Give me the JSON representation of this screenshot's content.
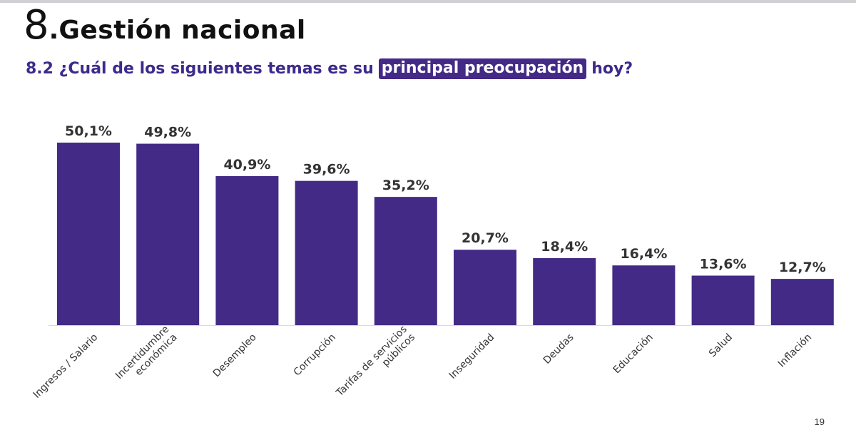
{
  "header": {
    "section_number": "8",
    "section_dot": ".",
    "section_title": "Gestión nacional"
  },
  "question": {
    "prefix": "8.2 ¿Cuál de los siguientes temas es su",
    "highlight": "principal preocupación",
    "suffix": "hoy?"
  },
  "page_number": "19",
  "colors": {
    "bar": "#432a86",
    "accent_text": "#3e2a8c",
    "label_text": "#333333",
    "baseline": "#d9d9de"
  },
  "chart_data": {
    "type": "bar",
    "categories": [
      [
        "Ingresos / Salario"
      ],
      [
        "Incertidumbre",
        "económica"
      ],
      [
        "Desempleo"
      ],
      [
        "Corrupción"
      ],
      [
        "Tarifas de servicios",
        "públicos"
      ],
      [
        "Inseguridad"
      ],
      [
        "Deudas"
      ],
      [
        "Educación"
      ],
      [
        "Salud"
      ],
      [
        "Inflación"
      ]
    ],
    "values": [
      50.1,
      49.8,
      40.9,
      39.6,
      35.2,
      20.7,
      18.4,
      16.4,
      13.6,
      12.7
    ],
    "value_labels": [
      "50,1%",
      "49,8%",
      "40,9%",
      "39,6%",
      "35,2%",
      "20,7%",
      "18,4%",
      "16,4%",
      "13,6%",
      "12,7%"
    ],
    "ylim": [
      0,
      50.1
    ],
    "grid": false,
    "legend": "none",
    "xlabel": "",
    "ylabel": ""
  }
}
